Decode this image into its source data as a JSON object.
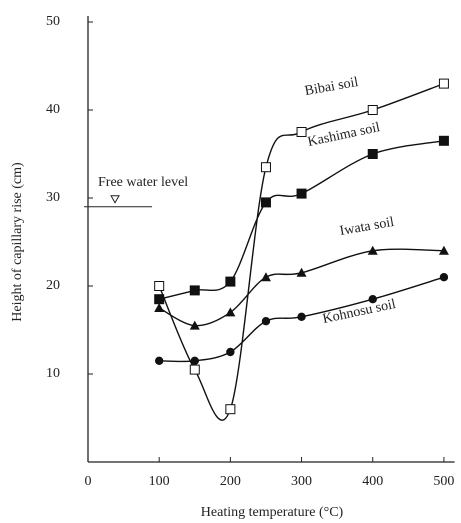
{
  "chart_data": {
    "type": "line",
    "xlabel": "Heating temperature (°C)",
    "ylabel": "Height of capillary rise (cm)",
    "x": [
      100,
      150,
      200,
      250,
      300,
      400,
      500
    ],
    "series": [
      {
        "name": "Bibai soil",
        "color": "#111111",
        "marker": "open-square",
        "values": [
          20,
          10.5,
          6,
          33.5,
          37.5,
          40,
          43
        ]
      },
      {
        "name": "Kashima soil",
        "color": "#111111",
        "marker": "filled-square",
        "values": [
          18.5,
          19.5,
          20.5,
          29.5,
          30.5,
          35,
          36.5
        ]
      },
      {
        "name": "Iwata soil",
        "color": "#111111",
        "marker": "triangle",
        "values": [
          17.5,
          15.5,
          17,
          21,
          21.5,
          24,
          24
        ]
      },
      {
        "name": "Kohnosu soil",
        "color": "#111111",
        "marker": "circle",
        "values": [
          11.5,
          11.5,
          12.5,
          16,
          16.5,
          18.5,
          21
        ]
      }
    ],
    "free_water_level": {
      "label": "Free water level",
      "value": 29
    },
    "xlim": [
      0,
      515
    ],
    "ylim": [
      0,
      50
    ],
    "xticks": [
      0,
      100,
      200,
      300,
      400,
      500
    ],
    "yticks": [
      10,
      20,
      30,
      40,
      50
    ]
  }
}
